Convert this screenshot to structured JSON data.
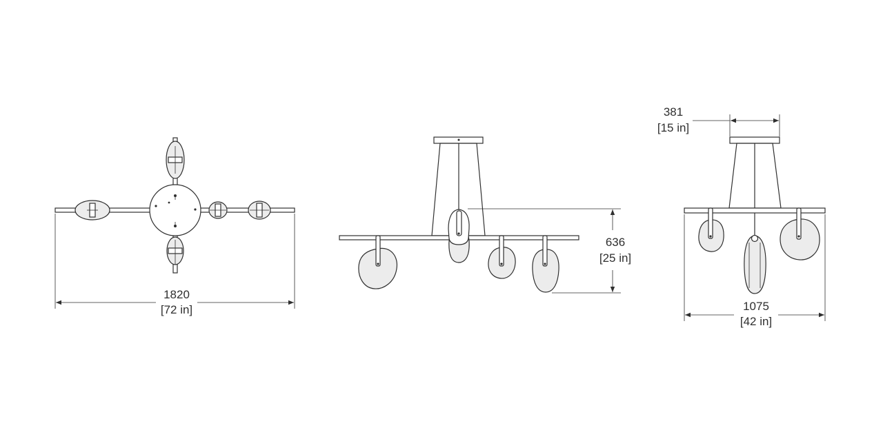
{
  "views": {
    "top": {
      "dimension": {
        "value_mm": "1820",
        "value_in": "[72 in]"
      }
    },
    "front": {
      "dimension": {
        "value_mm": "636",
        "value_in": "[25 in]"
      }
    },
    "side": {
      "canopy_dimension": {
        "value_mm": "381",
        "value_in": "[15 in]"
      },
      "width_dimension": {
        "value_mm": "1075",
        "value_in": "[42 in]"
      }
    }
  },
  "colors": {
    "line": "#2f2f2f",
    "glass": "#ececec",
    "background": "#ffffff"
  }
}
